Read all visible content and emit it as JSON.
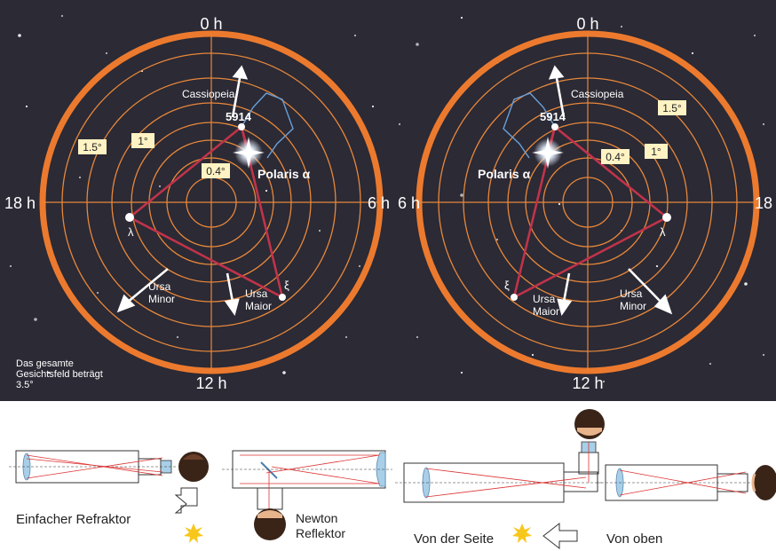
{
  "colors": {
    "sky": "#2b2a35",
    "ring_orange": "#ec7a2e",
    "grid_orange": "#e8873a",
    "constellation": "#c0334a",
    "cassiopeia": "#6aa0d8",
    "label_box": "#fff3c4",
    "lens": "#a9cfe8",
    "star_yellow": "#f7c71c"
  },
  "left_chart": {
    "hour_top": "0 h",
    "hour_bottom": "12 h",
    "hour_left": "18 h",
    "hour_right": "6 h",
    "cassiopeia": "Cassiopeia",
    "star_5914": "5914",
    "polaris": "Polaris α",
    "lambda": "λ",
    "xi": "ξ",
    "ursa_minor_1": "Ursa",
    "ursa_minor_2": "Minor",
    "ursa_maior_1": "Ursa",
    "ursa_maior_2": "Maior",
    "ring_1_5": "1.5°",
    "ring_1": "1°",
    "ring_0_4": "0.4°"
  },
  "right_chart": {
    "hour_top": "0 h",
    "hour_bottom": "12 h",
    "hour_left": "6 h",
    "hour_right": "18",
    "cassiopeia": "Cassiopeia",
    "star_5914": "5914",
    "polaris": "Polaris α",
    "lambda": "λ",
    "xi": "ξ",
    "ursa_minor_1": "Ursa",
    "ursa_minor_2": "Minor",
    "ursa_maior_1": "Ursa",
    "ursa_maior_2": "Maior",
    "ring_1_5": "1.5°",
    "ring_1": "1°",
    "ring_0_4": "0.4°"
  },
  "note": {
    "line1": "Das gesamte",
    "line2": "Gesichtsfeld beträgt",
    "line3": "3.5°"
  },
  "telescopes": {
    "refractor": "Einfacher Refraktor",
    "newton_1": "Newton",
    "newton_2": "Reflektor",
    "side": "Von der Seite",
    "top": "Von oben"
  }
}
